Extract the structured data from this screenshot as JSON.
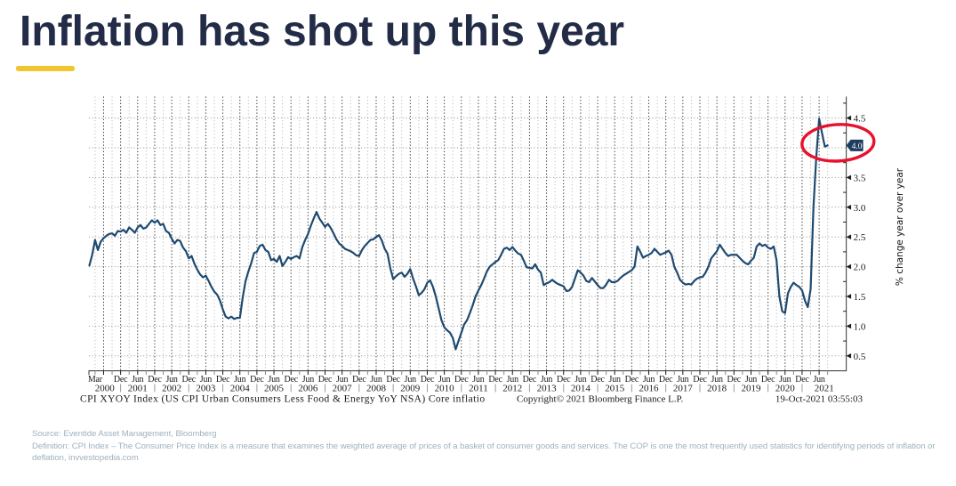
{
  "page": {
    "title": "Inflation has shot up this year",
    "title_color": "#232C47",
    "accent_color": "#F2C52F"
  },
  "notes": {
    "source": "Source: Eventide Asset Management, Bloomberg",
    "definition": "Definition: CPI Index – The Consumer Price Index is a measure that examines the weighted average of prices of a basket of consumer goods and services. The COP is one the most frequently used statistics for identifying periods of inflation or deflation, invvestopedia.com",
    "color": "#9DB2BE"
  },
  "chart_data": {
    "type": "line",
    "series": [
      {
        "name": "CPI XYOY Index",
        "frequency": "monthly",
        "x_start": "2000-01",
        "x_end": "2021-09",
        "values": [
          2.02,
          2.2,
          2.45,
          2.28,
          2.42,
          2.48,
          2.52,
          2.55,
          2.56,
          2.52,
          2.6,
          2.59,
          2.62,
          2.57,
          2.66,
          2.62,
          2.57,
          2.66,
          2.7,
          2.64,
          2.66,
          2.72,
          2.78,
          2.74,
          2.78,
          2.7,
          2.72,
          2.6,
          2.57,
          2.47,
          2.39,
          2.45,
          2.43,
          2.32,
          2.26,
          2.14,
          2.18,
          2.05,
          1.95,
          1.87,
          1.82,
          1.85,
          1.76,
          1.66,
          1.58,
          1.53,
          1.43,
          1.28,
          1.16,
          1.13,
          1.16,
          1.12,
          1.14,
          1.14,
          1.48,
          1.76,
          1.92,
          2.06,
          2.23,
          2.25,
          2.35,
          2.37,
          2.28,
          2.25,
          2.11,
          2.13,
          2.08,
          2.18,
          2.01,
          2.08,
          2.16,
          2.13,
          2.16,
          2.18,
          2.14,
          2.33,
          2.45,
          2.55,
          2.69,
          2.81,
          2.92,
          2.81,
          2.74,
          2.67,
          2.72,
          2.65,
          2.56,
          2.46,
          2.39,
          2.35,
          2.3,
          2.28,
          2.26,
          2.23,
          2.19,
          2.18,
          2.28,
          2.35,
          2.4,
          2.45,
          2.46,
          2.5,
          2.53,
          2.44,
          2.3,
          2.22,
          1.97,
          1.79,
          1.84,
          1.88,
          1.9,
          1.83,
          1.88,
          1.96,
          1.8,
          1.67,
          1.52,
          1.56,
          1.62,
          1.73,
          1.77,
          1.66,
          1.5,
          1.3,
          1.1,
          0.98,
          0.93,
          0.89,
          0.8,
          0.61,
          0.75,
          0.89,
          1.03,
          1.1,
          1.22,
          1.35,
          1.5,
          1.6,
          1.69,
          1.8,
          1.92,
          2.0,
          2.04,
          2.08,
          2.11,
          2.2,
          2.3,
          2.32,
          2.28,
          2.33,
          2.27,
          2.22,
          2.2,
          2.1,
          1.99,
          1.98,
          1.97,
          2.04,
          1.95,
          1.9,
          1.69,
          1.72,
          1.74,
          1.78,
          1.74,
          1.71,
          1.69,
          1.67,
          1.59,
          1.6,
          1.66,
          1.8,
          1.94,
          1.9,
          1.85,
          1.76,
          1.74,
          1.81,
          1.75,
          1.69,
          1.64,
          1.64,
          1.7,
          1.78,
          1.74,
          1.74,
          1.76,
          1.81,
          1.85,
          1.88,
          1.91,
          1.94,
          2.0,
          2.34,
          2.25,
          2.15,
          2.18,
          2.2,
          2.23,
          2.3,
          2.25,
          2.2,
          2.22,
          2.24,
          2.27,
          2.2,
          2.0,
          1.9,
          1.78,
          1.73,
          1.7,
          1.71,
          1.7,
          1.76,
          1.8,
          1.82,
          1.83,
          1.9,
          2.0,
          2.14,
          2.2,
          2.26,
          2.37,
          2.3,
          2.23,
          2.18,
          2.2,
          2.2,
          2.2,
          2.15,
          2.1,
          2.06,
          2.04,
          2.1,
          2.15,
          2.34,
          2.39,
          2.35,
          2.37,
          2.32,
          2.3,
          2.34,
          2.11,
          1.5,
          1.25,
          1.22,
          1.55,
          1.66,
          1.73,
          1.69,
          1.66,
          1.6,
          1.43,
          1.32,
          1.62,
          3.0,
          3.85,
          4.49,
          4.25,
          4.02,
          4.04
        ]
      }
    ],
    "ylabel": "% change year over year",
    "ylim": [
      0.25,
      4.86
    ],
    "yticks": [
      "0.5",
      "1.0",
      "1.5",
      "2.0",
      "2.5",
      "3.0",
      "3.5",
      "4.0",
      "4.5"
    ],
    "x_tick_labels": [
      "Mar 2000",
      "Dec 2000",
      "Jun 2001",
      "Dec 2001",
      "Jun 2002",
      "Dec 2002",
      "Jun 2003",
      "Dec 2003",
      "Jun 2004",
      "Dec 2004",
      "Jun 2005",
      "Dec 2005",
      "Jun 2006",
      "Dec 2006",
      "Jun 2007",
      "Dec 2007",
      "Jun 2008",
      "Dec 2008",
      "Jun 2009",
      "Dec 2009",
      "Jun 2010",
      "Dec 2010",
      "Jun 2011",
      "Dec 2011",
      "Jun 2012",
      "Dec 2012",
      "Jun 2013",
      "Dec 2013",
      "Jun 2014",
      "Dec 2014",
      "Jun 2015",
      "Dec 2015",
      "Jun 2016",
      "Dec 2016",
      "Jun 2017",
      "Dec 2017",
      "Jun 2018",
      "Dec 2018",
      "Jun 2019",
      "Dec 2019",
      "Jun 2020",
      "Dec 2020",
      "Jun 2021"
    ],
    "year_labels": [
      "2000",
      "2001",
      "2002",
      "2003",
      "2004",
      "2005",
      "2006",
      "2007",
      "2008",
      "2009",
      "2010",
      "2011",
      "2012",
      "2013",
      "2014",
      "2015",
      "2016",
      "2017",
      "2018",
      "2019",
      "2020",
      "2021"
    ],
    "grid": true,
    "legend_position": "none",
    "axis_side": "right",
    "last_value_label": "4.0",
    "footer_left": "CPI XYOY Index (US CPI Urban Consumers Less Food & Energy YoY NSA) Core inflatio",
    "footer_center": "Copyright© 2021 Bloomberg Finance L.P.",
    "footer_right": "19-Oct-2021 03:55:03",
    "line_color": "#1F4A70",
    "tag_color": "#1C3D60",
    "annotation_color": "#E8112D"
  }
}
